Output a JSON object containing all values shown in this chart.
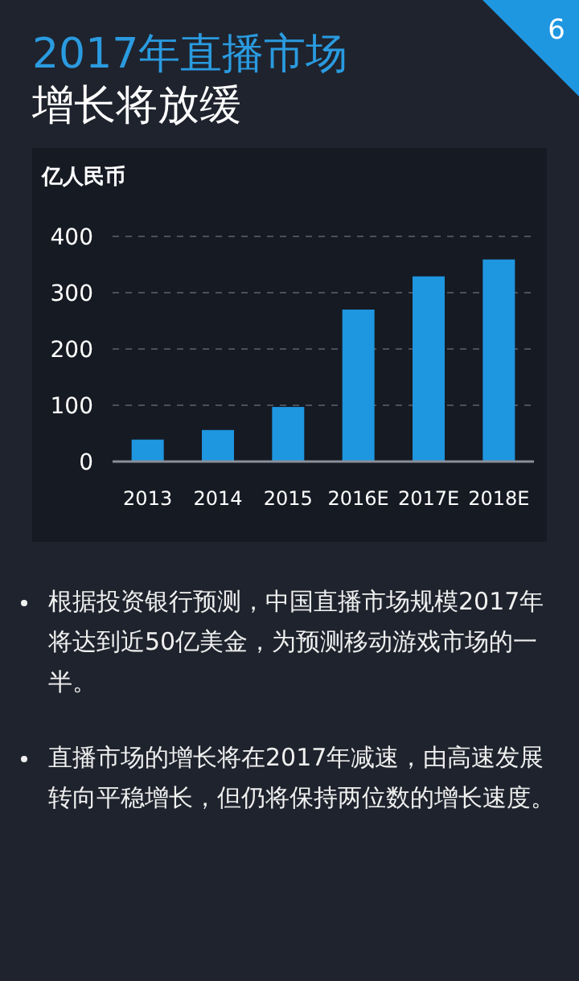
{
  "chart_data": {
    "type": "bar",
    "title": "2017年直播市场",
    "subtitle": "增长将放缓",
    "ylabel": "亿人民币",
    "categories": [
      "2013",
      "2014",
      "2015",
      "2016E",
      "2017E",
      "2018E"
    ],
    "values": [
      39,
      56,
      97,
      270,
      329,
      359
    ],
    "color": "#1e96e0",
    "ylim": [
      0,
      400
    ],
    "yticks": [
      0,
      100,
      200,
      300,
      400
    ],
    "grid": "y",
    "annotations": [
      "6",
      "根据投资银行预测，中国直播市场规模2017年将达到近50亿美金，为预测移动游戏市场的一半。",
      "直播市场的增长将在2017年减速，由高速发展转向平稳增长，但仍将保持两位数的增长速度。"
    ]
  }
}
